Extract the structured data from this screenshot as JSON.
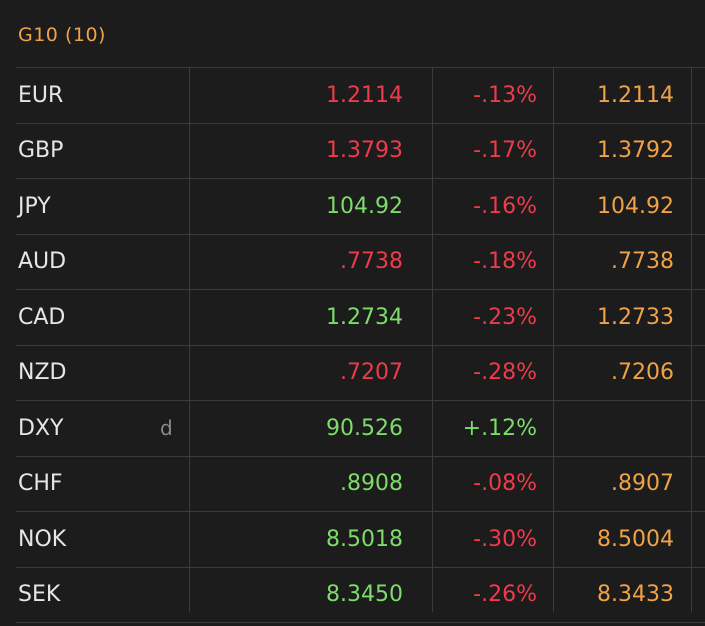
{
  "header": {
    "title": "G10 (10)"
  },
  "colors": {
    "up": "#7ddc6a",
    "down": "#ee3b4c",
    "accent": "#f0a247",
    "text": "#e6e6e6"
  },
  "rows": [
    {
      "symbol": "EUR",
      "flag": "",
      "last": "1.2114",
      "last_dir": "down",
      "change": "-.13%",
      "change_dir": "down",
      "prev": "1.2114"
    },
    {
      "symbol": "GBP",
      "flag": "",
      "last": "1.3793",
      "last_dir": "down",
      "change": "-.17%",
      "change_dir": "down",
      "prev": "1.3792"
    },
    {
      "symbol": "JPY",
      "flag": "",
      "last": "104.92",
      "last_dir": "up",
      "change": "-.16%",
      "change_dir": "down",
      "prev": "104.92"
    },
    {
      "symbol": "AUD",
      "flag": "",
      "last": ".7738",
      "last_dir": "down",
      "change": "-.18%",
      "change_dir": "down",
      "prev": ".7738"
    },
    {
      "symbol": "CAD",
      "flag": "",
      "last": "1.2734",
      "last_dir": "up",
      "change": "-.23%",
      "change_dir": "down",
      "prev": "1.2733"
    },
    {
      "symbol": "NZD",
      "flag": "",
      "last": ".7207",
      "last_dir": "down",
      "change": "-.28%",
      "change_dir": "down",
      "prev": ".7206"
    },
    {
      "symbol": "DXY",
      "flag": "d",
      "last": "90.526",
      "last_dir": "up",
      "change": "+.12%",
      "change_dir": "up",
      "prev": ""
    },
    {
      "symbol": "CHF",
      "flag": "",
      "last": ".8908",
      "last_dir": "up",
      "change": "-.08%",
      "change_dir": "down",
      "prev": ".8907"
    },
    {
      "symbol": "NOK",
      "flag": "",
      "last": "8.5018",
      "last_dir": "up",
      "change": "-.30%",
      "change_dir": "down",
      "prev": "8.5004"
    },
    {
      "symbol": "SEK",
      "flag": "",
      "last": "8.3450",
      "last_dir": "up",
      "change": "-.26%",
      "change_dir": "down",
      "prev": "8.3433"
    }
  ]
}
